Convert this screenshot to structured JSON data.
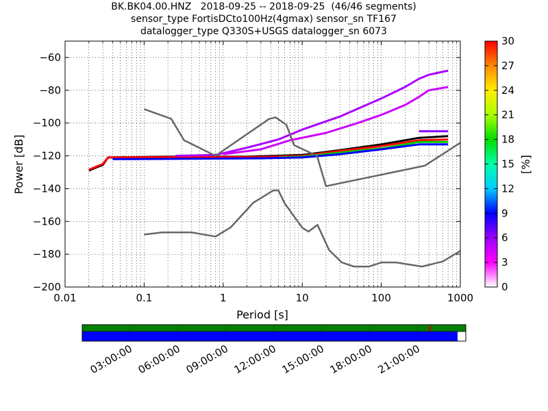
{
  "chart_data": {
    "type": "heatmap",
    "title_lines": [
      "BK.BK04.00.HNZ   2018-09-25 -- 2018-09-25  (46/46 segments)",
      "sensor_type FortisDCto100Hz(4gmax) sensor_sn TF167",
      "datalogger_type Q330S+USGS datalogger_sn 6073"
    ],
    "xlabel": "Period [s]",
    "ylabel": "Power [dB]",
    "xscale": "log",
    "xlim": [
      0.01,
      1000
    ],
    "ylim": [
      -200,
      -50
    ],
    "x_ticks": [
      0.01,
      0.1,
      1,
      10,
      100,
      1000
    ],
    "x_tick_labels": [
      "0.01",
      "0.1",
      "1",
      "10",
      "100",
      "1000"
    ],
    "y_ticks": [
      -200,
      -180,
      -160,
      -140,
      -120,
      -100,
      -80,
      -60
    ],
    "y_tick_labels": [
      "−200",
      "−180",
      "−160",
      "−140",
      "−120",
      "−100",
      "−80",
      "−60"
    ],
    "grid": true,
    "colorbar": {
      "label": "[%]",
      "range": [
        0,
        30
      ],
      "ticks": [
        0,
        3,
        6,
        9,
        12,
        15,
        18,
        21,
        24,
        27,
        30
      ],
      "tick_labels": [
        "0",
        "3",
        "6",
        "9",
        "12",
        "15",
        "18",
        "21",
        "24",
        "27",
        "30"
      ],
      "colormap": [
        "#ffffff",
        "#ff00ff",
        "#9900ff",
        "#0000ff",
        "#00ccff",
        "#00ffaa",
        "#00dd00",
        "#aaff00",
        "#ffee00",
        "#ff8800",
        "#ff0000"
      ]
    },
    "noise_models": [
      {
        "name": "NHNM",
        "color": "#666666",
        "points": [
          [
            0.1,
            -91.5
          ],
          [
            0.22,
            -97.4
          ],
          [
            0.32,
            -110.5
          ],
          [
            0.8,
            -120
          ],
          [
            3.8,
            -97.5
          ],
          [
            4.6,
            -96.5
          ],
          [
            6.3,
            -101
          ],
          [
            7.9,
            -113.5
          ],
          [
            15.4,
            -120
          ],
          [
            20,
            -138.5
          ],
          [
            354.8,
            -126
          ],
          [
            1000,
            -112
          ]
        ]
      },
      {
        "name": "NLNM",
        "color": "#666666",
        "points": [
          [
            0.1,
            -168
          ],
          [
            0.17,
            -166.7
          ],
          [
            0.4,
            -166.7
          ],
          [
            0.8,
            -169.2
          ],
          [
            1.24,
            -163.7
          ],
          [
            2.4,
            -148.6
          ],
          [
            4.3,
            -141.1
          ],
          [
            5,
            -141.1
          ],
          [
            6,
            -149
          ],
          [
            10,
            -163.8
          ],
          [
            12,
            -166.2
          ],
          [
            15.6,
            -162.1
          ],
          [
            21.9,
            -177.5
          ],
          [
            31.6,
            -185
          ],
          [
            45,
            -187.5
          ],
          [
            70,
            -187.5
          ],
          [
            101,
            -185
          ],
          [
            154,
            -185
          ],
          [
            328,
            -187.5
          ],
          [
            600,
            -184.4
          ],
          [
            1000,
            -178
          ]
        ]
      }
    ],
    "psd_traces": [
      {
        "color": "#000000",
        "points": [
          [
            0.02,
            -129
          ],
          [
            0.025,
            -127
          ],
          [
            0.03,
            -125.5
          ],
          [
            0.035,
            -121
          ],
          [
            0.2,
            -120.5
          ],
          [
            2,
            -120.5
          ],
          [
            10,
            -119.5
          ],
          [
            30,
            -116.5
          ],
          [
            100,
            -113
          ],
          [
            300,
            -109
          ],
          [
            700,
            -108
          ]
        ]
      },
      {
        "color": "#ff0000",
        "points": [
          [
            0.02,
            -128.5
          ],
          [
            0.025,
            -126.5
          ],
          [
            0.03,
            -125
          ],
          [
            0.035,
            -121
          ],
          [
            0.2,
            -120.8
          ],
          [
            3,
            -120.8
          ],
          [
            10,
            -120
          ],
          [
            30,
            -117
          ],
          [
            100,
            -114
          ],
          [
            300,
            -110.5
          ],
          [
            700,
            -110
          ]
        ]
      },
      {
        "color": "#00cc00",
        "points": [
          [
            5,
            -121
          ],
          [
            10,
            -120.5
          ],
          [
            30,
            -118
          ],
          [
            100,
            -115.5
          ],
          [
            300,
            -111.5
          ],
          [
            700,
            -111.5
          ]
        ]
      },
      {
        "color": "#0000ff",
        "points": [
          [
            0.04,
            -122
          ],
          [
            0.07,
            -122
          ],
          [
            3,
            -121.5
          ],
          [
            10,
            -121
          ],
          [
            30,
            -119
          ],
          [
            100,
            -116
          ],
          [
            300,
            -113
          ],
          [
            700,
            -113
          ]
        ]
      },
      {
        "color": "#aa00ff",
        "points": [
          [
            0.25,
            -120
          ],
          [
            0.8,
            -119.5
          ],
          [
            2,
            -115
          ],
          [
            5,
            -110
          ],
          [
            10,
            -104
          ],
          [
            30,
            -96
          ],
          [
            100,
            -85
          ],
          [
            200,
            -78
          ],
          [
            300,
            -73
          ],
          [
            400,
            -70.5
          ],
          [
            700,
            -68
          ]
        ]
      },
      {
        "color": "#cc00ff",
        "points": [
          [
            1,
            -119
          ],
          [
            3,
            -116
          ],
          [
            7,
            -110.5
          ],
          [
            20,
            -106
          ],
          [
            50,
            -100
          ],
          [
            100,
            -95
          ],
          [
            200,
            -89
          ],
          [
            300,
            -84
          ],
          [
            400,
            -80
          ],
          [
            700,
            -78
          ]
        ]
      },
      {
        "color": "#8800ff",
        "points": [
          [
            300,
            -105
          ],
          [
            700,
            -105
          ]
        ]
      }
    ],
    "timeline": {
      "tick_labels": [
        "03:00:00",
        "06:00:00",
        "09:00:00",
        "12:00:00",
        "15:00:00",
        "18:00:00",
        "21:00:00"
      ],
      "top_bar_color": "#008000",
      "bottom_bar_color": "#0000ff",
      "coverage_fraction": 0.979
    }
  }
}
